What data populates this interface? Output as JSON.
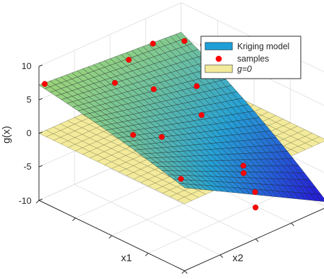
{
  "chart_data": {
    "type": "surface3d",
    "title": "",
    "xlabel": "x1",
    "ylabel": "x2",
    "zlabel": "g(x)",
    "zlim": [
      -10,
      10
    ],
    "z_ticks": [
      "10",
      "5",
      "0",
      "-5",
      "-10"
    ],
    "grid": true,
    "legend_position": "top-right",
    "legend": {
      "surface": "Kriging model",
      "samples": "samples",
      "plane": "g=0"
    },
    "surface": {
      "corner_values": {
        "u0_v0": 7.2,
        "u1_v0": 2.4,
        "u0_v1": 5.6,
        "u1_v1": -7.0
      }
    },
    "plane_value": 0,
    "samples": [
      {
        "u": 0.02,
        "v": 0.02,
        "z": 7.4
      },
      {
        "u": 0.18,
        "v": 0.35,
        "z": 6.1
      },
      {
        "u": 0.08,
        "v": 0.55,
        "z": 6.6
      },
      {
        "u": 0.05,
        "v": 0.75,
        "z": 6.8
      },
      {
        "u": 0.12,
        "v": 0.9,
        "z": 6.5
      },
      {
        "u": 0.2,
        "v": 0.95,
        "z": 6.3
      },
      {
        "u": 0.28,
        "v": 0.88,
        "z": 5.7
      },
      {
        "u": 0.5,
        "v": 0.15,
        "z": 3.6
      },
      {
        "u": 0.58,
        "v": 0.55,
        "z": 3.6
      },
      {
        "u": 0.55,
        "v": 0.3,
        "z": 2.4
      },
      {
        "u": 0.78,
        "v": 0.2,
        "z": -0.5
      },
      {
        "u": 0.72,
        "v": 0.7,
        "z": -3.9
      },
      {
        "u": 0.8,
        "v": 0.62,
        "z": -3.4
      },
      {
        "u": 0.84,
        "v": 0.66,
        "z": -6.2
      },
      {
        "u": 0.95,
        "v": 0.55,
        "z": -6.3
      },
      {
        "u": 0.3,
        "v": 0.5,
        "z": 5.0
      },
      {
        "u": 0.4,
        "v": 0.7,
        "z": 4.6
      }
    ],
    "colors": {
      "surface_low": "#1e1ad6",
      "surface_mid": "#1f9fd8",
      "surface_high": "#a8d96a",
      "plane": "#f3eb9b",
      "samples": "#ff0000"
    }
  }
}
